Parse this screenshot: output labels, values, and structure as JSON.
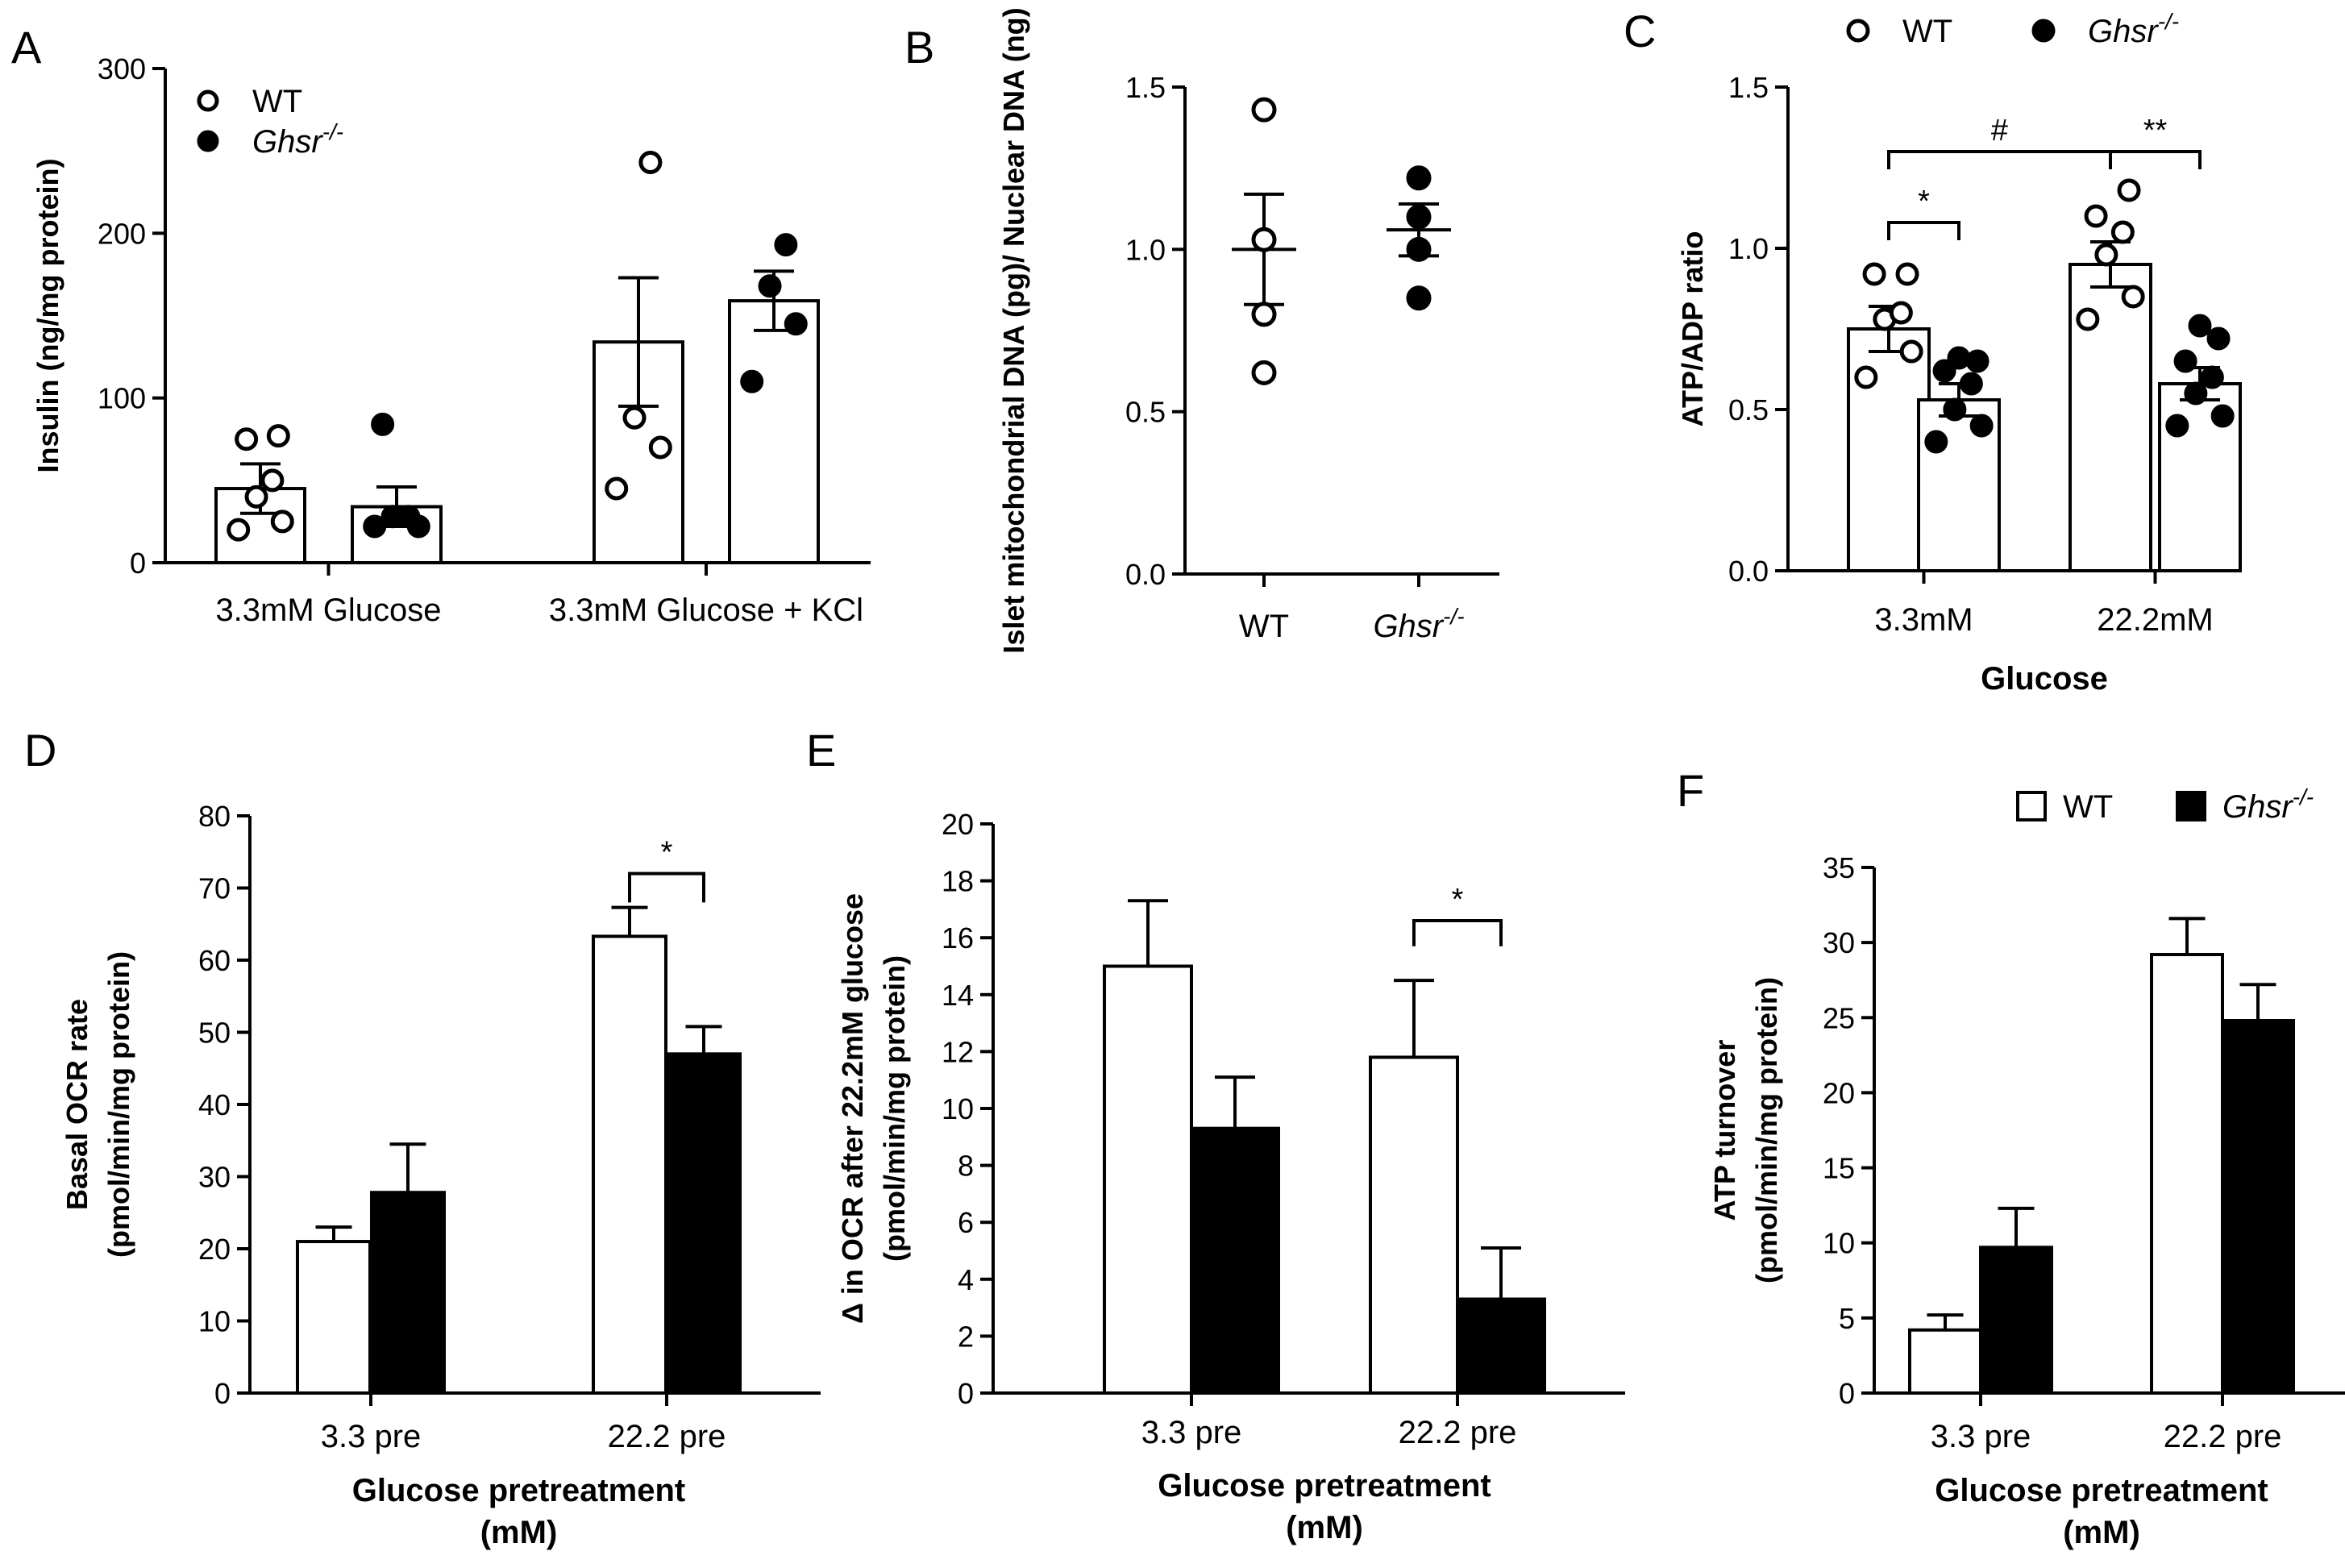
{
  "colors": {
    "ink": "#000000",
    "paper": "#ffffff"
  },
  "chart_data": [
    {
      "panel": "A",
      "type": "bar",
      "ylabel": "Insulin (ng/mg protein)",
      "ylim": [
        0,
        300
      ],
      "yticks": [
        "0",
        "100",
        "200",
        "300"
      ],
      "categories": [
        "3.3mM Glucose",
        "3.3mM Glucose + KCl"
      ],
      "legend": [
        {
          "symbol": "open-circle",
          "label": "WT",
          "italic": false
        },
        {
          "symbol": "filled-circle",
          "label": "Ghsr",
          "sup": "-/-",
          "italic": true
        }
      ],
      "series": [
        {
          "name": "WT",
          "values": [
            45,
            134
          ],
          "errors": [
            15,
            39
          ],
          "points": [
            [
              20,
              25,
              40,
              50,
              75,
              77
            ],
            [
              45,
              70,
              88,
              243
            ]
          ]
        },
        {
          "name": "Ghsr-/-",
          "values": [
            34,
            159
          ],
          "errors": [
            12,
            18
          ],
          "points": [
            [
              22,
              22,
              28,
              28,
              84
            ],
            [
              110,
              145,
              168,
              193
            ]
          ]
        }
      ],
      "annotations": []
    },
    {
      "panel": "B",
      "type": "scatter",
      "ylabel": "Islet mitochondrial DNA (pg)/ Nuclear DNA  (ng)",
      "ylim": [
        0,
        1.5
      ],
      "yticks": [
        "0.0",
        "0.5",
        "1.0",
        "1.5"
      ],
      "categories": [
        "WT",
        "Ghsr"
      ],
      "category_sup": [
        "",
        "-/-"
      ],
      "series": [
        {
          "name": "WT",
          "mean": 1.0,
          "sem": 0.17,
          "points": [
            0.62,
            0.8,
            1.03,
            1.43
          ]
        },
        {
          "name": "Ghsr-/-",
          "mean": 1.06,
          "sem": 0.08,
          "points": [
            0.85,
            1.0,
            1.1,
            1.22
          ]
        }
      ],
      "annotations": []
    },
    {
      "panel": "C",
      "type": "bar",
      "ylabel": "ATP/ADP ratio",
      "xlabel": "Glucose",
      "ylim": [
        0,
        1.5
      ],
      "yticks": [
        "0.0",
        "0.5",
        "1.0",
        "1.5"
      ],
      "categories": [
        "3.3mM",
        "22.2mM"
      ],
      "legend": [
        {
          "symbol": "open-circle",
          "label": "WT",
          "italic": false
        },
        {
          "symbol": "filled-circle",
          "label": "Ghsr",
          "sup": "-/-",
          "italic": true
        }
      ],
      "series": [
        {
          "name": "WT",
          "values": [
            0.75,
            0.95
          ],
          "errors": [
            0.07,
            0.07
          ],
          "points": [
            [
              0.6,
              0.68,
              0.78,
              0.8,
              0.92,
              0.92
            ],
            [
              0.78,
              0.85,
              0.98,
              1.05,
              1.1,
              1.18
            ]
          ]
        },
        {
          "name": "Ghsr-/-",
          "values": [
            0.53,
            0.58
          ],
          "errors": [
            0.05,
            0.05
          ],
          "points": [
            [
              0.4,
              0.45,
              0.5,
              0.58,
              0.62,
              0.65,
              0.66
            ],
            [
              0.45,
              0.48,
              0.55,
              0.6,
              0.65,
              0.72,
              0.76
            ]
          ]
        }
      ],
      "annotations": [
        {
          "text": "*",
          "from": [
            0,
            0
          ],
          "to": [
            0,
            1
          ],
          "y": 1.08
        },
        {
          "text": "#",
          "from": [
            0,
            0
          ],
          "to": [
            1,
            0
          ],
          "y": 1.3
        },
        {
          "text": "**",
          "from": [
            1,
            0
          ],
          "to": [
            1,
            1
          ],
          "y": 1.3
        }
      ]
    },
    {
      "panel": "D",
      "type": "bar",
      "ylabel_lines": [
        "Basal OCR rate",
        "(pmol/min/mg protein)"
      ],
      "xlabel_lines": [
        "Glucose pretreatment",
        "(mM)"
      ],
      "ylim": [
        0,
        80
      ],
      "yticks": [
        "0",
        "10",
        "20",
        "30",
        "40",
        "50",
        "60",
        "70",
        "80"
      ],
      "categories": [
        "3.3 pre",
        "22.2 pre"
      ],
      "series": [
        {
          "name": "WT",
          "values": [
            21,
            63.3
          ],
          "errors": [
            2.0,
            4.0
          ]
        },
        {
          "name": "Ghsr-/-",
          "values": [
            27.8,
            47
          ],
          "errors": [
            6.7,
            3.8
          ]
        }
      ],
      "annotations": [
        {
          "text": "*",
          "from": [
            1,
            0
          ],
          "to": [
            1,
            1
          ],
          "y": 72,
          "drop": 4
        }
      ]
    },
    {
      "panel": "E",
      "type": "bar",
      "ylabel_lines": [
        "Δ in OCR after 22.2mM glucose",
        "(pmol/min/mg protein)"
      ],
      "xlabel_lines": [
        "Glucose pretreatment",
        "(mM)"
      ],
      "ylim": [
        0,
        20
      ],
      "yticks": [
        "0",
        "2",
        "4",
        "6",
        "8",
        "10",
        "12",
        "14",
        "16",
        "18",
        "20"
      ],
      "categories": [
        "3.3 pre",
        "22.2 pre"
      ],
      "series": [
        {
          "name": "WT",
          "values": [
            15,
            11.8
          ],
          "errors": [
            2.3,
            2.7
          ]
        },
        {
          "name": "Ghsr-/-",
          "values": [
            9.3,
            3.3
          ],
          "errors": [
            1.8,
            1.8
          ]
        }
      ],
      "annotations": [
        {
          "text": "*",
          "from": [
            1,
            0
          ],
          "to": [
            1,
            1
          ],
          "y": 16.6,
          "drop": 0.9
        }
      ]
    },
    {
      "panel": "F",
      "type": "bar",
      "ylabel_lines": [
        "ATP turnover",
        "(pmol/min/mg protein)"
      ],
      "xlabel_lines": [
        "Glucose pretreatment",
        "(mM)"
      ],
      "ylim": [
        0,
        35
      ],
      "yticks": [
        "0",
        "5",
        "10",
        "15",
        "20",
        "25",
        "30",
        "35"
      ],
      "categories": [
        "3.3 pre",
        "22.2 pre"
      ],
      "legend": [
        {
          "symbol": "open-square",
          "label": "WT",
          "italic": false
        },
        {
          "symbol": "filled-square",
          "label": "Ghsr",
          "sup": "-/-",
          "italic": true
        }
      ],
      "series": [
        {
          "name": "WT",
          "values": [
            4.2,
            29.2
          ],
          "errors": [
            1.0,
            2.4
          ]
        },
        {
          "name": "Ghsr-/-",
          "values": [
            9.7,
            24.8
          ],
          "errors": [
            2.6,
            2.4
          ]
        }
      ],
      "annotations": []
    }
  ]
}
